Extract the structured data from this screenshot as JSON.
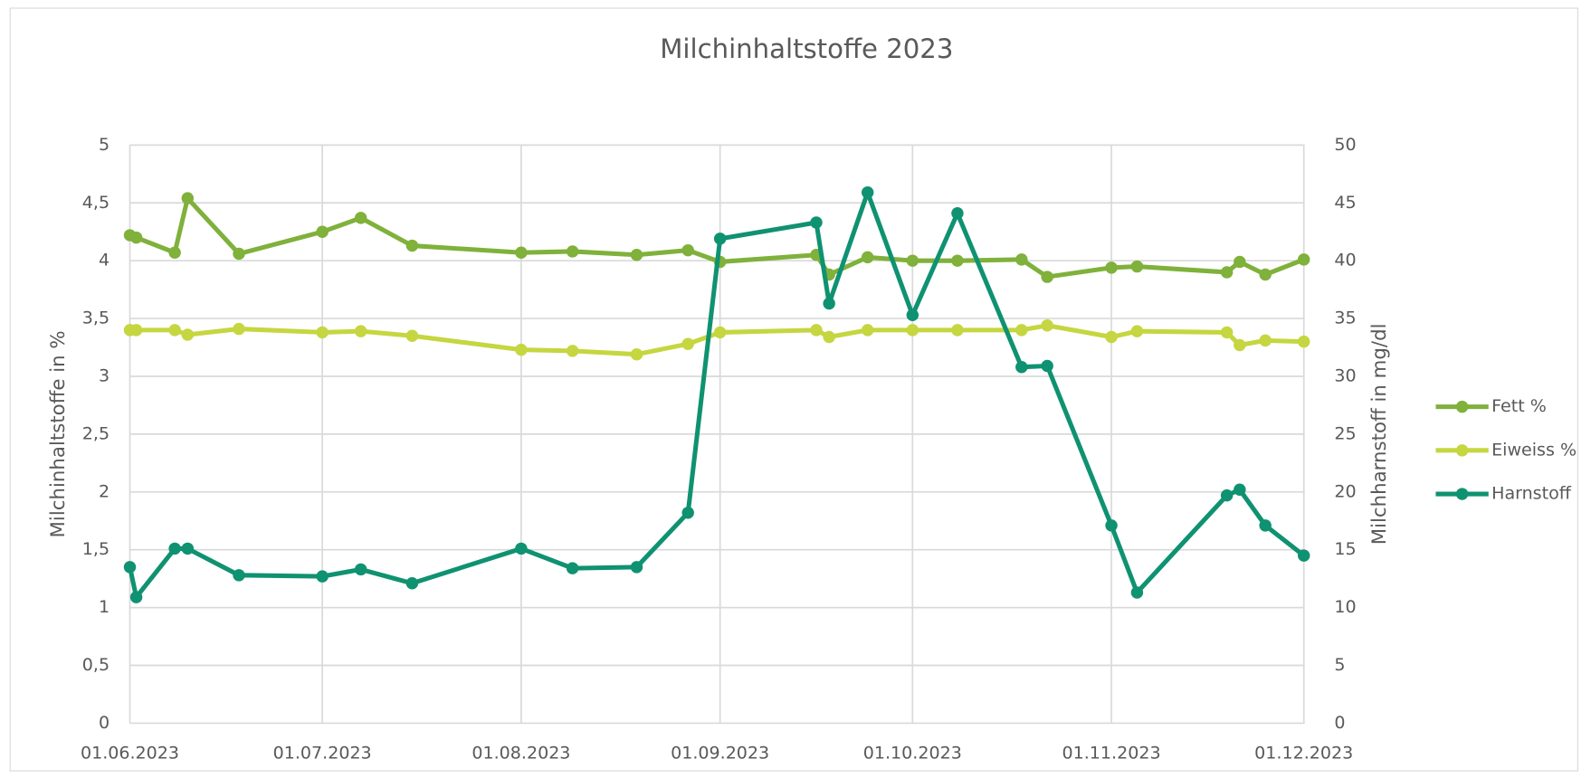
{
  "chart_data": {
    "type": "line",
    "title": "Milchinhaltstoffe 2023",
    "y_label": "Milchinhaltstoffe in %",
    "y2_label": "Milchharnstoff in mg/dl",
    "x": [
      "01.06.2023",
      "02.06.2023",
      "08.06.2023",
      "10.06.2023",
      "18.06.2023",
      "01.07.2023",
      "07.07.2023",
      "15.07.2023",
      "01.08.2023",
      "09.08.2023",
      "19.08.2023",
      "27.08.2023",
      "01.09.2023",
      "16.09.2023",
      "18.09.2023",
      "24.09.2023",
      "01.10.2023",
      "08.10.2023",
      "18.10.2023",
      "22.10.2023",
      "01.11.2023",
      "05.11.2023",
      "19.11.2023",
      "21.11.2023",
      "25.11.2023",
      "01.12.2023"
    ],
    "xlim": [
      "01.06.2023",
      "01.12.2023"
    ],
    "xticks": [
      "01.06.2023",
      "01.07.2023",
      "01.08.2023",
      "01.09.2023",
      "01.10.2023",
      "01.11.2023",
      "01.12.2023"
    ],
    "ylim": [
      0,
      5
    ],
    "yticks": [
      0,
      {
        "value": 0.5,
        "label": "0,5"
      },
      1,
      {
        "value": 1.5,
        "label": "1,5"
      },
      2,
      {
        "value": 2.5,
        "label": "2,5"
      },
      3,
      {
        "value": 3.5,
        "label": "3,5"
      },
      4,
      {
        "value": 4.5,
        "label": "4,5"
      },
      5
    ],
    "y2lim": [
      0,
      50
    ],
    "y2ticks": [
      0,
      5,
      10,
      15,
      20,
      25,
      30,
      35,
      40,
      45,
      50
    ],
    "grid": true,
    "legend": "right",
    "series": [
      {
        "name": "Fett %",
        "color": "#7fb13b",
        "values": [
          4.22,
          4.2,
          4.07,
          4.54,
          4.06,
          4.25,
          4.37,
          4.13,
          4.07,
          4.08,
          4.05,
          4.09,
          3.99,
          4.05,
          3.88,
          4.03,
          4.0,
          4.0,
          4.01,
          3.86,
          3.94,
          3.95,
          3.9,
          3.99,
          3.88,
          4.01
        ]
      },
      {
        "name": "Eiweiss %",
        "color": "#c5d640",
        "values": [
          3.4,
          3.4,
          3.4,
          3.36,
          3.41,
          3.38,
          3.39,
          3.35,
          3.23,
          3.22,
          3.19,
          3.28,
          3.38,
          3.4,
          3.34,
          3.4,
          3.4,
          3.4,
          3.4,
          3.44,
          3.34,
          3.39,
          3.38,
          3.27,
          3.31,
          3.3
        ]
      },
      {
        "name": "Harnstoff",
        "color": "#0f9271",
        "axis": "y2",
        "values": [
          13.5,
          10.9,
          15.1,
          15.1,
          12.8,
          12.7,
          13.3,
          12.1,
          15.1,
          13.4,
          13.5,
          18.2,
          41.9,
          43.3,
          36.3,
          45.9,
          35.3,
          44.1,
          30.8,
          30.9,
          17.1,
          11.3,
          19.7,
          20.2,
          17.1,
          14.5
        ]
      }
    ]
  }
}
